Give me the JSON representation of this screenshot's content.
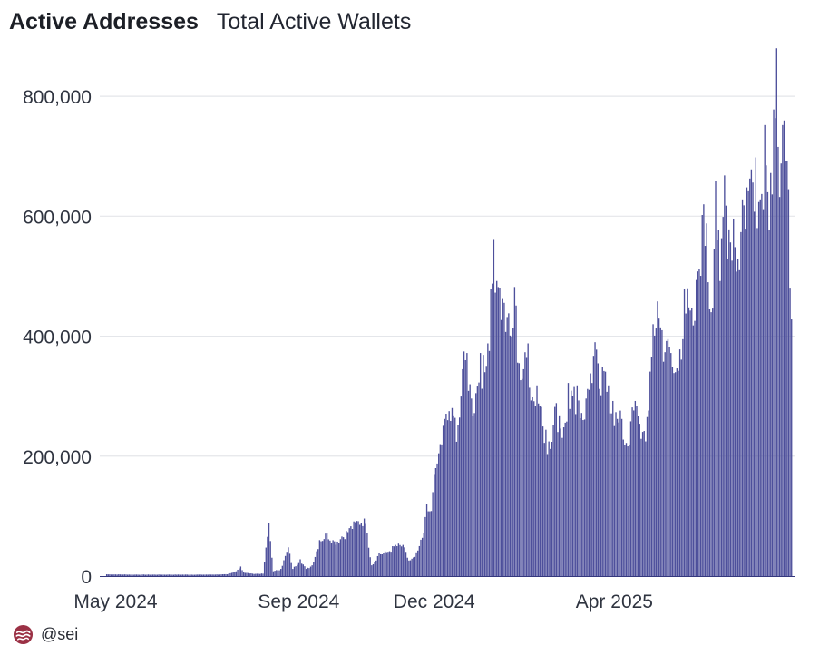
{
  "header": {
    "title": "Active Addresses",
    "subtitle": "Total Active Wallets"
  },
  "footer": {
    "logo_icon": "sei-logo-icon",
    "handle": "@sei",
    "logo_color": "#9b3145"
  },
  "colors": {
    "bar": "#4d4f9b",
    "bar_stroke": "#35387d",
    "grid": "#e4e6ea",
    "axis_text": "#2f3440"
  },
  "chart_data": {
    "type": "bar",
    "title": "",
    "xlabel": "",
    "ylabel": "",
    "ylim": [
      0,
      900000
    ],
    "grid": "horizontal",
    "legend": "none",
    "y_ticks": [
      0,
      200000,
      400000,
      600000,
      800000
    ],
    "y_tick_labels": [
      "0",
      "200,000",
      "400,000",
      "600,000",
      "800,000"
    ],
    "x_tick_labels": [
      "May 2024",
      "Sep 2024",
      "Dec 2024",
      "Apr 2025"
    ],
    "x_ticks": [
      "2024-05-01",
      "2024-09-01",
      "2024-12-01",
      "2025-04-01"
    ],
    "x_range": [
      "2024-04-24",
      "2025-07-31"
    ],
    "series": [
      {
        "name": "",
        "points": [
          [
            "2024-04-25",
            3000
          ],
          [
            "2024-05-15",
            2500
          ],
          [
            "2024-06-05",
            2500
          ],
          [
            "2024-07-01",
            2500
          ],
          [
            "2024-07-15",
            3000
          ],
          [
            "2024-07-20",
            7000
          ],
          [
            "2024-07-24",
            16000
          ],
          [
            "2024-07-26",
            6000
          ],
          [
            "2024-08-01",
            4000
          ],
          [
            "2024-08-08",
            4000
          ],
          [
            "2024-08-12",
            88000
          ],
          [
            "2024-08-15",
            8000
          ],
          [
            "2024-08-20",
            12000
          ],
          [
            "2024-08-25",
            48000
          ],
          [
            "2024-08-28",
            12000
          ],
          [
            "2024-09-02",
            28000
          ],
          [
            "2024-09-06",
            12000
          ],
          [
            "2024-09-10",
            18000
          ],
          [
            "2024-09-15",
            60000
          ],
          [
            "2024-09-20",
            72000
          ],
          [
            "2024-09-25",
            58000
          ],
          [
            "2024-09-30",
            66000
          ],
          [
            "2024-10-05",
            80000
          ],
          [
            "2024-10-10",
            92000
          ],
          [
            "2024-10-15",
            96000
          ],
          [
            "2024-10-17",
            72000
          ],
          [
            "2024-10-20",
            18000
          ],
          [
            "2024-10-25",
            38000
          ],
          [
            "2024-10-30",
            40000
          ],
          [
            "2024-11-05",
            52000
          ],
          [
            "2024-11-10",
            52000
          ],
          [
            "2024-11-14",
            26000
          ],
          [
            "2024-11-18",
            32000
          ],
          [
            "2024-11-21",
            50000
          ],
          [
            "2024-11-24",
            72000
          ],
          [
            "2024-11-26",
            120000
          ],
          [
            "2024-11-28",
            108000
          ],
          [
            "2024-11-30",
            140000
          ],
          [
            "2024-12-02",
            180000
          ],
          [
            "2024-12-05",
            220000
          ],
          [
            "2024-12-08",
            262000
          ],
          [
            "2024-12-11",
            275000
          ],
          [
            "2024-12-14",
            268000
          ],
          [
            "2024-12-17",
            252000
          ],
          [
            "2024-12-20",
            345000
          ],
          [
            "2024-12-23",
            372000
          ],
          [
            "2024-12-26",
            296000
          ],
          [
            "2024-12-29",
            305000
          ],
          [
            "2025-01-01",
            372000
          ],
          [
            "2025-01-04",
            340000
          ],
          [
            "2025-01-06",
            388000
          ],
          [
            "2025-01-08",
            478000
          ],
          [
            "2025-01-10",
            562000
          ],
          [
            "2025-01-12",
            492000
          ],
          [
            "2025-01-14",
            480000
          ],
          [
            "2025-01-16",
            462000
          ],
          [
            "2025-01-19",
            432000
          ],
          [
            "2025-01-22",
            398000
          ],
          [
            "2025-01-24",
            482000
          ],
          [
            "2025-01-27",
            355000
          ],
          [
            "2025-01-30",
            345000
          ],
          [
            "2025-02-02",
            388000
          ],
          [
            "2025-02-05",
            298000
          ],
          [
            "2025-02-08",
            318000
          ],
          [
            "2025-02-11",
            282000
          ],
          [
            "2025-02-14",
            244000
          ],
          [
            "2025-02-17",
            212000
          ],
          [
            "2025-02-20",
            282000
          ],
          [
            "2025-02-23",
            268000
          ],
          [
            "2025-02-26",
            248000
          ],
          [
            "2025-03-01",
            322000
          ],
          [
            "2025-03-04",
            300000
          ],
          [
            "2025-03-07",
            318000
          ],
          [
            "2025-03-10",
            272000
          ],
          [
            "2025-03-13",
            296000
          ],
          [
            "2025-03-16",
            338000
          ],
          [
            "2025-03-19",
            390000
          ],
          [
            "2025-03-22",
            312000
          ],
          [
            "2025-03-25",
            342000
          ],
          [
            "2025-03-28",
            318000
          ],
          [
            "2025-03-31",
            292000
          ],
          [
            "2025-04-03",
            262000
          ],
          [
            "2025-04-06",
            262000
          ],
          [
            "2025-04-09",
            222000
          ],
          [
            "2025-04-12",
            258000
          ],
          [
            "2025-04-15",
            292000
          ],
          [
            "2025-04-18",
            254000
          ],
          [
            "2025-04-21",
            242000
          ],
          [
            "2025-04-24",
            276000
          ],
          [
            "2025-04-27",
            420000
          ],
          [
            "2025-04-30",
            458000
          ],
          [
            "2025-05-03",
            410000
          ],
          [
            "2025-05-06",
            392000
          ],
          [
            "2025-05-09",
            372000
          ],
          [
            "2025-05-12",
            340000
          ],
          [
            "2025-05-15",
            378000
          ],
          [
            "2025-05-18",
            478000
          ],
          [
            "2025-05-21",
            448000
          ],
          [
            "2025-05-24",
            418000
          ],
          [
            "2025-05-27",
            508000
          ],
          [
            "2025-05-30",
            602000
          ],
          [
            "2025-06-02",
            588000
          ],
          [
            "2025-06-05",
            440000
          ],
          [
            "2025-06-08",
            658000
          ],
          [
            "2025-06-11",
            492000
          ],
          [
            "2025-06-14",
            668000
          ],
          [
            "2025-06-17",
            578000
          ],
          [
            "2025-06-20",
            596000
          ],
          [
            "2025-06-23",
            528000
          ],
          [
            "2025-06-26",
            628000
          ],
          [
            "2025-06-29",
            648000
          ],
          [
            "2025-07-02",
            678000
          ],
          [
            "2025-07-05",
            698000
          ],
          [
            "2025-07-08",
            628000
          ],
          [
            "2025-07-11",
            752000
          ],
          [
            "2025-07-13",
            640000
          ],
          [
            "2025-07-15",
            672000
          ],
          [
            "2025-07-17",
            778000
          ],
          [
            "2025-07-19",
            880000
          ],
          [
            "2025-07-21",
            632000
          ],
          [
            "2025-07-23",
            752000
          ],
          [
            "2025-07-25",
            692000
          ],
          [
            "2025-07-27",
            645000
          ],
          [
            "2025-07-29",
            428000
          ]
        ]
      }
    ]
  }
}
